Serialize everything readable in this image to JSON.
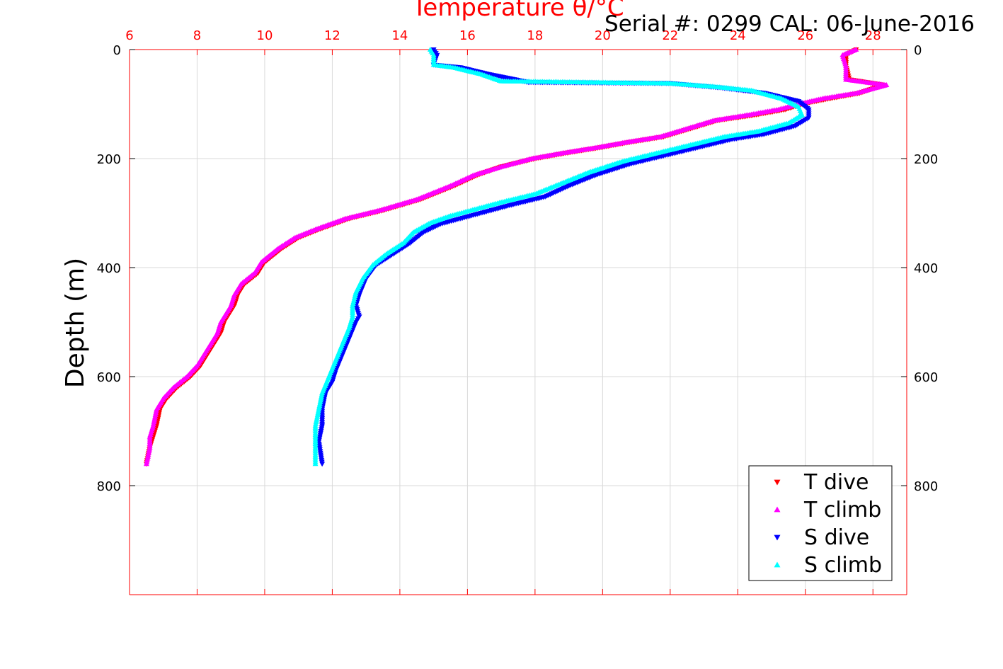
{
  "chart_data": {
    "type": "scatter",
    "title": "Temperature θ/°C",
    "annotation": "Serial #: 0299 CAL: 06-June-2016",
    "xlabel": "Temperature θ/°C",
    "ylabel": "Depth (m)",
    "xlim": [
      6,
      29
    ],
    "ylim": [
      1000,
      0
    ],
    "xticks": [
      6,
      8,
      10,
      12,
      14,
      16,
      18,
      20,
      22,
      24,
      26,
      28
    ],
    "yticks": [
      0,
      200,
      400,
      600,
      800
    ],
    "grid": true,
    "legend_position": "bottom-right",
    "colors": {
      "axis_top": "#ff0000",
      "axis": "#000000",
      "grid": "#d9d9d9"
    },
    "series": [
      {
        "name": "T dive",
        "marker": "triangle-down",
        "color": "#ff0000",
        "points": [
          [
            27.5,
            0
          ],
          [
            27.2,
            10
          ],
          [
            27.2,
            30
          ],
          [
            27.3,
            55
          ],
          [
            28.3,
            65
          ],
          [
            27.6,
            80
          ],
          [
            26.7,
            90
          ],
          [
            25.9,
            100
          ],
          [
            25.4,
            110
          ],
          [
            24.5,
            120
          ],
          [
            23.4,
            130
          ],
          [
            22.6,
            145
          ],
          [
            21.8,
            160
          ],
          [
            20.8,
            170
          ],
          [
            19.9,
            180
          ],
          [
            18.9,
            190
          ],
          [
            18.0,
            200
          ],
          [
            17.0,
            215
          ],
          [
            16.3,
            230
          ],
          [
            15.6,
            250
          ],
          [
            14.6,
            275
          ],
          [
            13.5,
            295
          ],
          [
            12.5,
            310
          ],
          [
            11.6,
            330
          ],
          [
            11.0,
            345
          ],
          [
            10.5,
            365
          ],
          [
            10.0,
            390
          ],
          [
            9.8,
            410
          ],
          [
            9.4,
            430
          ],
          [
            9.2,
            450
          ],
          [
            9.1,
            470
          ],
          [
            8.8,
            500
          ],
          [
            8.7,
            520
          ],
          [
            8.4,
            550
          ],
          [
            8.1,
            580
          ],
          [
            7.8,
            600
          ],
          [
            7.4,
            620
          ],
          [
            7.1,
            640
          ],
          [
            6.9,
            660
          ],
          [
            6.8,
            690
          ],
          [
            6.7,
            710
          ],
          [
            6.6,
            730
          ],
          [
            6.5,
            760
          ]
        ]
      },
      {
        "name": "T climb",
        "marker": "triangle-up",
        "color": "#ff00ff",
        "points": [
          [
            27.5,
            0
          ],
          [
            27.1,
            10
          ],
          [
            27.2,
            30
          ],
          [
            27.2,
            55
          ],
          [
            28.4,
            65
          ],
          [
            27.5,
            80
          ],
          [
            26.5,
            90
          ],
          [
            25.8,
            100
          ],
          [
            25.2,
            110
          ],
          [
            24.3,
            120
          ],
          [
            23.3,
            130
          ],
          [
            22.5,
            145
          ],
          [
            21.7,
            160
          ],
          [
            20.7,
            170
          ],
          [
            19.8,
            180
          ],
          [
            18.8,
            190
          ],
          [
            17.9,
            200
          ],
          [
            17.0,
            215
          ],
          [
            16.2,
            230
          ],
          [
            15.5,
            250
          ],
          [
            14.5,
            275
          ],
          [
            13.4,
            295
          ],
          [
            12.4,
            310
          ],
          [
            11.5,
            330
          ],
          [
            10.9,
            345
          ],
          [
            10.4,
            365
          ],
          [
            9.9,
            390
          ],
          [
            9.7,
            410
          ],
          [
            9.3,
            430
          ],
          [
            9.1,
            450
          ],
          [
            9.0,
            470
          ],
          [
            8.7,
            500
          ],
          [
            8.6,
            520
          ],
          [
            8.3,
            550
          ],
          [
            8.0,
            580
          ],
          [
            7.7,
            600
          ],
          [
            7.3,
            620
          ],
          [
            7.0,
            640
          ],
          [
            6.8,
            660
          ],
          [
            6.7,
            690
          ],
          [
            6.6,
            710
          ],
          [
            6.6,
            730
          ],
          [
            6.5,
            760
          ]
        ]
      },
      {
        "name": "S dive",
        "marker": "triangle-down",
        "color": "#0000ff",
        "points": [
          [
            15.0,
            0
          ],
          [
            15.1,
            10
          ],
          [
            15.0,
            28
          ],
          [
            15.8,
            33
          ],
          [
            16.6,
            45
          ],
          [
            17.8,
            60
          ],
          [
            22.0,
            62
          ],
          [
            23.5,
            70
          ],
          [
            24.8,
            80
          ],
          [
            25.8,
            95
          ],
          [
            26.1,
            110
          ],
          [
            26.1,
            125
          ],
          [
            25.7,
            140
          ],
          [
            24.8,
            155
          ],
          [
            23.8,
            165
          ],
          [
            22.8,
            180
          ],
          [
            21.8,
            195
          ],
          [
            20.8,
            210
          ],
          [
            19.8,
            230
          ],
          [
            19.0,
            250
          ],
          [
            18.3,
            270
          ],
          [
            17.3,
            285
          ],
          [
            16.4,
            300
          ],
          [
            15.8,
            310
          ],
          [
            15.2,
            320
          ],
          [
            14.7,
            335
          ],
          [
            14.3,
            355
          ],
          [
            13.8,
            375
          ],
          [
            13.3,
            395
          ],
          [
            13.0,
            420
          ],
          [
            12.8,
            450
          ],
          [
            12.7,
            470
          ],
          [
            12.8,
            490
          ],
          [
            12.7,
            500
          ],
          [
            12.5,
            530
          ],
          [
            12.3,
            560
          ],
          [
            12.1,
            590
          ],
          [
            12.0,
            610
          ],
          [
            11.8,
            630
          ],
          [
            11.7,
            660
          ],
          [
            11.7,
            690
          ],
          [
            11.6,
            720
          ],
          [
            11.7,
            760
          ]
        ]
      },
      {
        "name": "S climb",
        "marker": "triangle-up",
        "color": "#00ffff",
        "points": [
          [
            14.9,
            0
          ],
          [
            15.0,
            10
          ],
          [
            15.0,
            28
          ],
          [
            15.6,
            33
          ],
          [
            16.4,
            45
          ],
          [
            17.0,
            58
          ],
          [
            19.5,
            60
          ],
          [
            22.0,
            62
          ],
          [
            23.3,
            68
          ],
          [
            24.4,
            75
          ],
          [
            25.3,
            90
          ],
          [
            25.8,
            105
          ],
          [
            25.9,
            120
          ],
          [
            25.5,
            135
          ],
          [
            24.6,
            150
          ],
          [
            23.6,
            160
          ],
          [
            22.6,
            175
          ],
          [
            21.6,
            190
          ],
          [
            20.6,
            205
          ],
          [
            19.6,
            225
          ],
          [
            18.8,
            245
          ],
          [
            18.0,
            265
          ],
          [
            17.0,
            280
          ],
          [
            16.1,
            295
          ],
          [
            15.5,
            305
          ],
          [
            14.9,
            318
          ],
          [
            14.4,
            335
          ],
          [
            14.1,
            355
          ],
          [
            13.6,
            375
          ],
          [
            13.2,
            395
          ],
          [
            12.9,
            420
          ],
          [
            12.7,
            445
          ],
          [
            12.6,
            470
          ],
          [
            12.6,
            490
          ],
          [
            12.5,
            510
          ],
          [
            12.3,
            540
          ],
          [
            12.1,
            570
          ],
          [
            11.9,
            600
          ],
          [
            11.7,
            630
          ],
          [
            11.6,
            660
          ],
          [
            11.5,
            690
          ],
          [
            11.5,
            720
          ],
          [
            11.5,
            760
          ]
        ]
      }
    ]
  }
}
